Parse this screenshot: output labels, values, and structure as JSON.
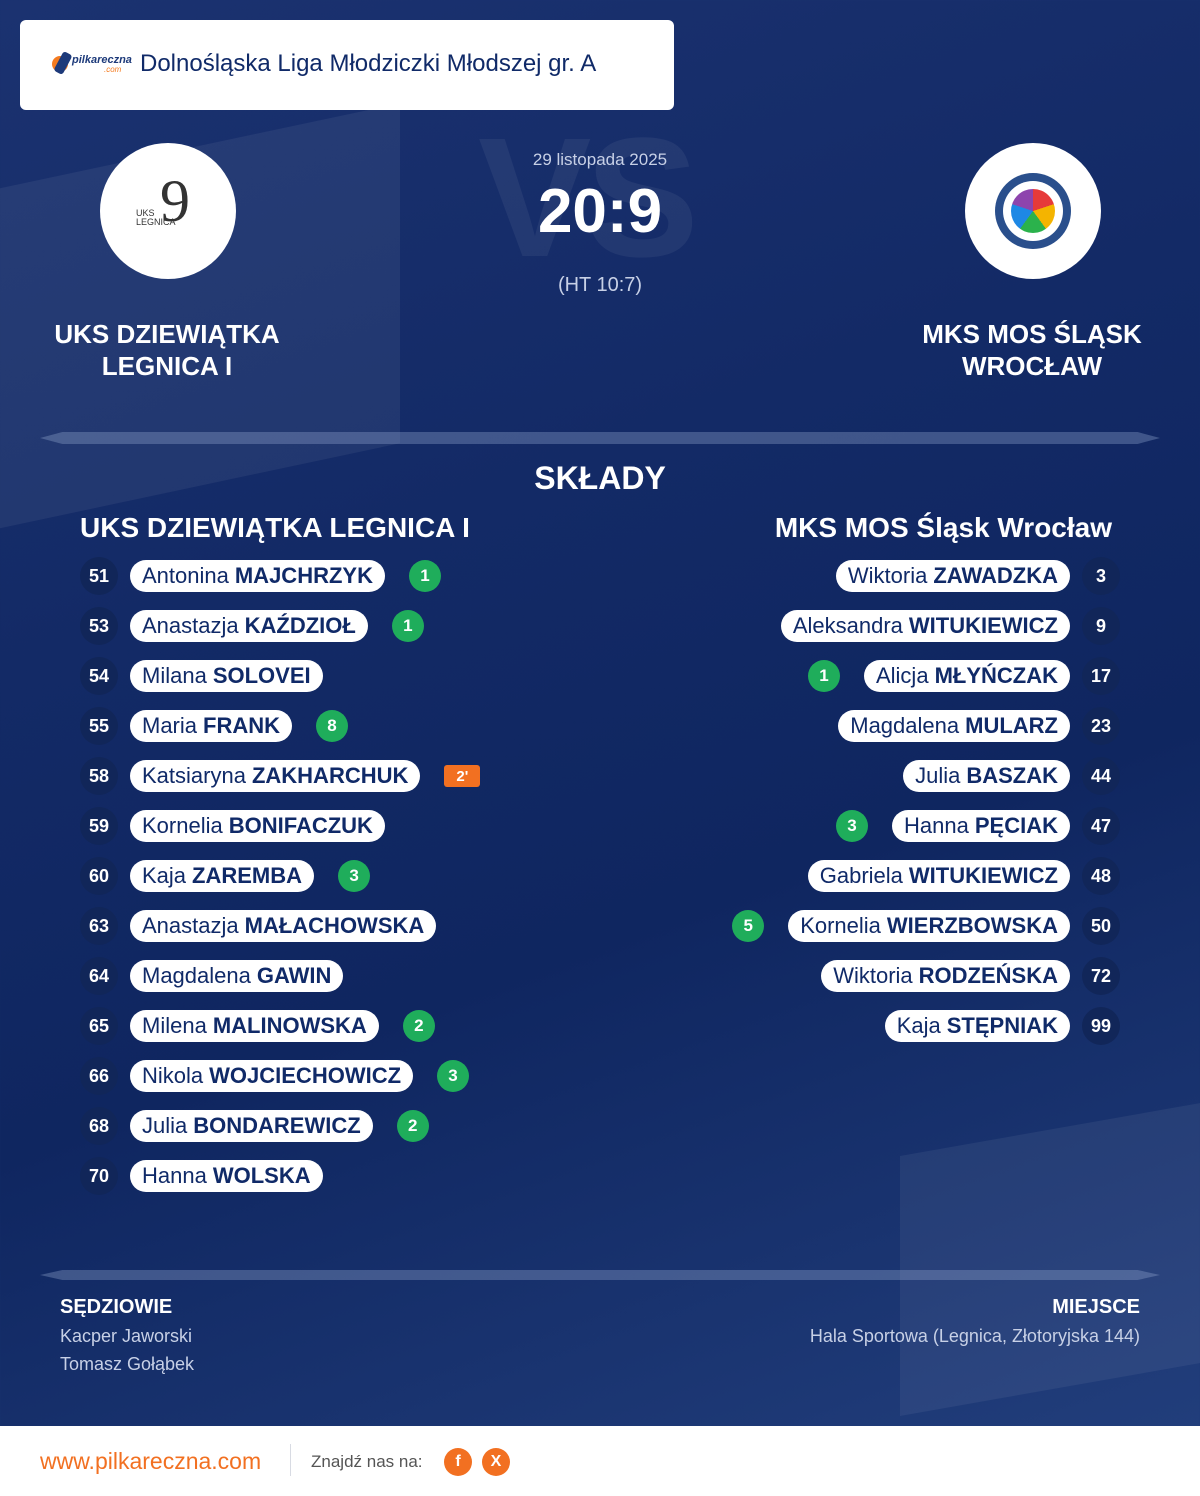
{
  "league": "Dolnośląska Liga Młodziczki Młodszej gr. A",
  "logo": {
    "brand": "pilkareczna",
    "domain": ".com"
  },
  "match": {
    "date": "29 listopada 2025",
    "score": "20:9",
    "halftime": "(HT 10:7)",
    "vs": "VS"
  },
  "home": {
    "name": "UKS DZIEWIĄTKA LEGNICA I",
    "name_line1": "UKS DZIEWIĄTKA",
    "name_line2": "LEGNICA I",
    "crest_text": {
      "digit": "9",
      "label1": "UKS",
      "label2": "LEGNICA"
    },
    "players": [
      {
        "num": "51",
        "first": "Antonina",
        "last": "MAJCHRZYK",
        "goals": "1"
      },
      {
        "num": "53",
        "first": "Anastazja",
        "last": "KAŹDZIOŁ",
        "goals": "1"
      },
      {
        "num": "54",
        "first": "Milana",
        "last": "SOLOVEI"
      },
      {
        "num": "55",
        "first": "Maria",
        "last": "FRANK",
        "goals": "8"
      },
      {
        "num": "58",
        "first": "Katsiaryna",
        "last": "ZAKHARCHUK",
        "penalty": "2'"
      },
      {
        "num": "59",
        "first": "Kornelia",
        "last": "BONIFACZUK"
      },
      {
        "num": "60",
        "first": "Kaja",
        "last": "ZAREMBA",
        "goals": "3"
      },
      {
        "num": "63",
        "first": "Anastazja",
        "last": "MAŁACHOWSKA"
      },
      {
        "num": "64",
        "first": "Magdalena",
        "last": "GAWIN"
      },
      {
        "num": "65",
        "first": "Milena",
        "last": "MALINOWSKA",
        "goals": "2"
      },
      {
        "num": "66",
        "first": "Nikola",
        "last": "WOJCIECHOWICZ",
        "goals": "3"
      },
      {
        "num": "68",
        "first": "Julia",
        "last": "BONDAREWICZ",
        "goals": "2"
      },
      {
        "num": "70",
        "first": "Hanna",
        "last": "WOLSKA"
      }
    ]
  },
  "away": {
    "name": "MKS MOS Śląsk Wrocław",
    "name_line1": "MKS MOS ŚLĄSK",
    "name_line2": "WROCŁAW",
    "players": [
      {
        "num": "3",
        "first": "Wiktoria",
        "last": "ZAWADZKA"
      },
      {
        "num": "9",
        "first": "Aleksandra",
        "last": "WITUKIEWICZ"
      },
      {
        "num": "17",
        "first": "Alicja",
        "last": "MŁYŃCZAK",
        "goals": "1"
      },
      {
        "num": "23",
        "first": "Magdalena",
        "last": "MULARZ"
      },
      {
        "num": "44",
        "first": "Julia",
        "last": "BASZAK"
      },
      {
        "num": "47",
        "first": "Hanna",
        "last": "PĘCIAK",
        "goals": "3"
      },
      {
        "num": "48",
        "first": "Gabriela",
        "last": "WITUKIEWICZ"
      },
      {
        "num": "50",
        "first": "Kornelia",
        "last": "WIERZBOWSKA",
        "goals": "5"
      },
      {
        "num": "72",
        "first": "Wiktoria",
        "last": "RODZEŃSKA"
      },
      {
        "num": "99",
        "first": "Kaja",
        "last": "STĘPNIAK"
      }
    ]
  },
  "section_title": "SKŁADY",
  "referees": {
    "title": "SĘDZIOWIE",
    "names": [
      "Kacper Jaworski",
      "Tomasz Gołąbek"
    ]
  },
  "venue": {
    "title": "MIEJSCE",
    "value": "Hala Sportowa (Legnica, Złotoryjska 144)"
  },
  "footer": {
    "site": "www.pilkareczna.com",
    "find_us": "Znajdź nas na:",
    "social": [
      {
        "icon": "facebook-icon",
        "glyph": "f"
      },
      {
        "icon": "x-icon",
        "glyph": "X"
      }
    ]
  },
  "colors": {
    "navy": "#112659",
    "goal": "#1fad5b",
    "accent": "#f27021"
  }
}
